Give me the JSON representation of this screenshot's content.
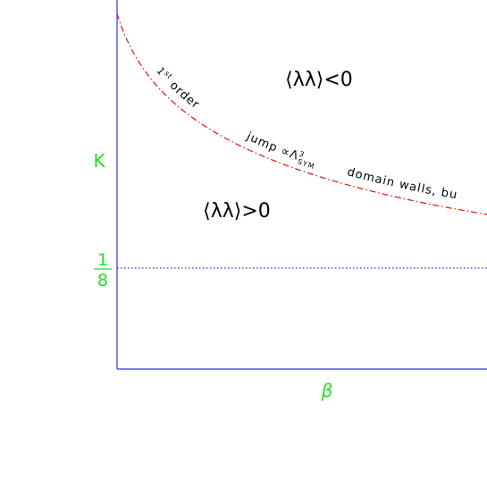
{
  "axes": {
    "y_label": "K",
    "x_label": "β",
    "y_mark": {
      "numerator": "1",
      "denominator": "8"
    }
  },
  "regions": {
    "upper": "⟨λλ⟩<0",
    "lower": "⟨λλ⟩>0"
  },
  "boundary_labels": {
    "first": {
      "number": "1",
      "superscript": "st",
      "text": " order"
    },
    "second": {
      "text": "jump ∝Λ",
      "superscript": "3",
      "subscript": "SYM"
    },
    "third": {
      "text": "domain walls, bu"
    }
  }
}
